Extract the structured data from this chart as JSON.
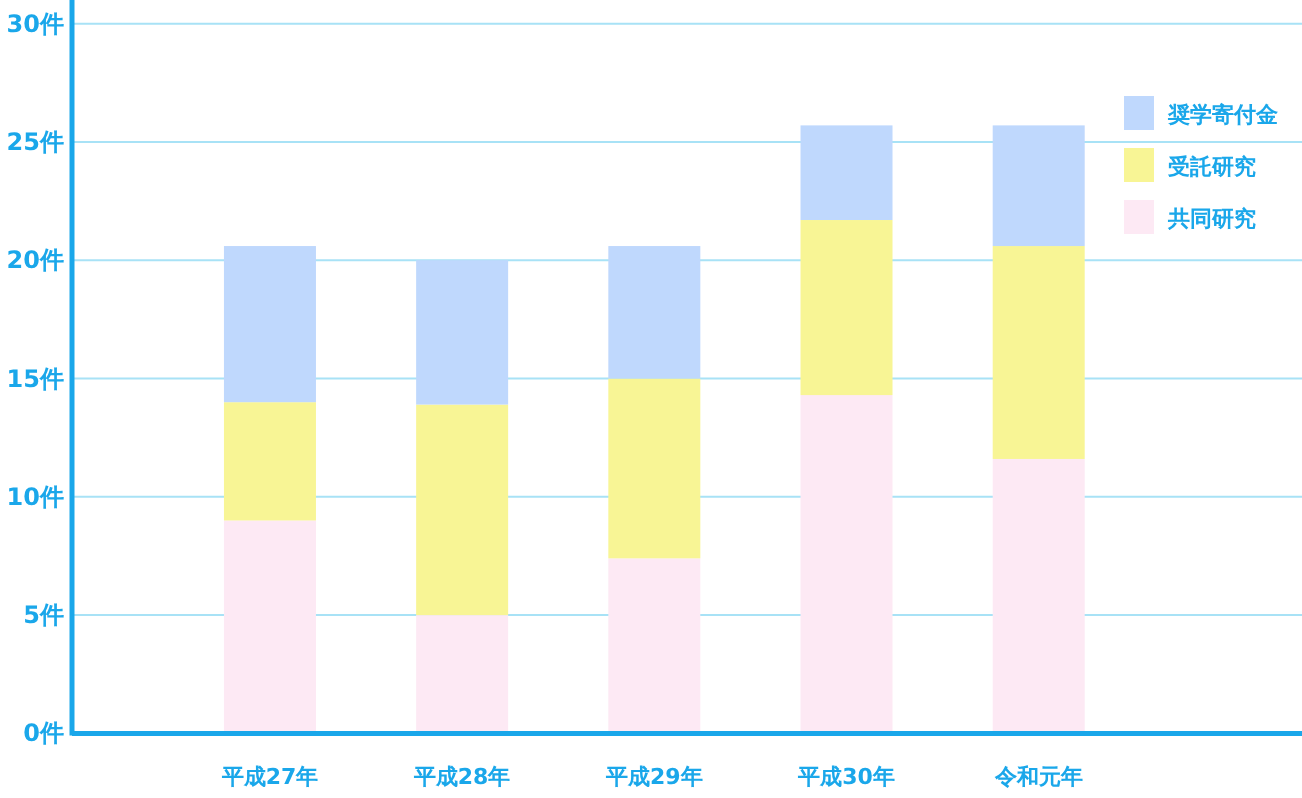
{
  "chart_data": {
    "type": "bar",
    "stacked": true,
    "categories": [
      "平成27年",
      "平成28年",
      "平成29年",
      "平成30年",
      "令和元年"
    ],
    "series": [
      {
        "name": "共同研究",
        "color": "#fde9f4",
        "values": [
          9,
          5,
          7.4,
          14.3,
          11.6
        ]
      },
      {
        "name": "受託研究",
        "color": "#f8f595",
        "values": [
          5,
          8.9,
          7.6,
          7.4,
          9.0
        ]
      },
      {
        "name": "奨学寄付金",
        "color": "#bfd8fd",
        "values": [
          6.6,
          6.1,
          5.6,
          4.0,
          5.1
        ]
      }
    ],
    "ylim": [
      0,
      31
    ],
    "yticks": [
      {
        "value": 0,
        "label": "0件"
      },
      {
        "value": 5,
        "label": "5件"
      },
      {
        "value": 10,
        "label": "10件"
      },
      {
        "value": 15,
        "label": "15件"
      },
      {
        "value": 20,
        "label": "20件"
      },
      {
        "value": 25,
        "label": "25件"
      },
      {
        "value": 30,
        "label": "30件"
      }
    ],
    "grid": "y",
    "legend": "top right"
  }
}
